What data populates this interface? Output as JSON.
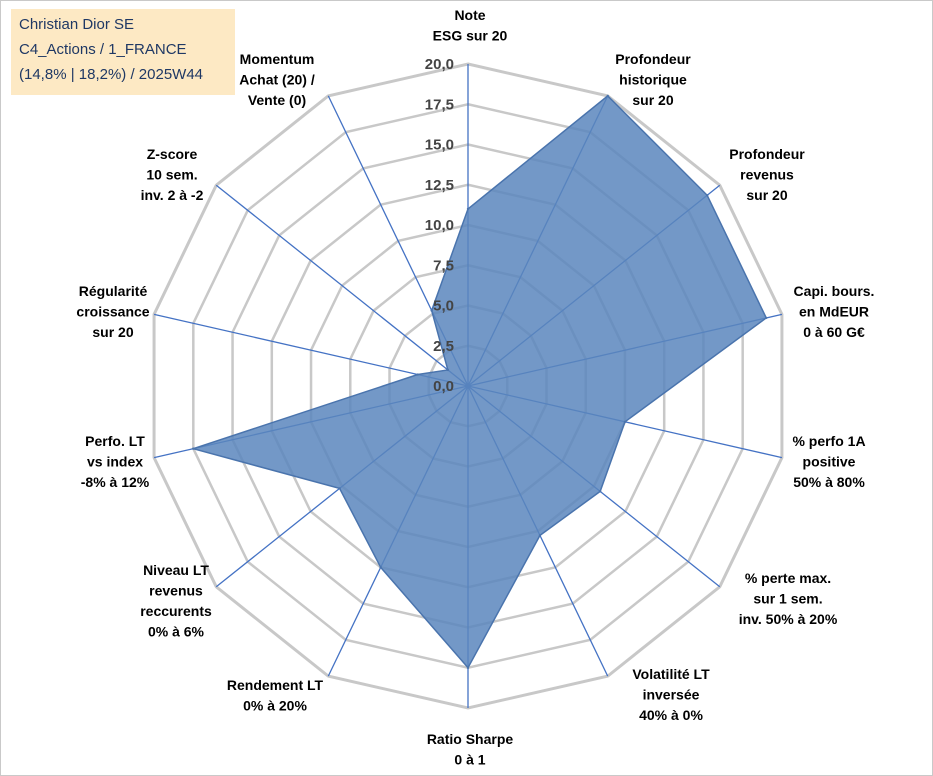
{
  "info": {
    "line1": "Christian Dior SE",
    "line2": "C4_Actions / 1_FRANCE",
    "line3": "(14,8% | 18,2%) / 2025W44"
  },
  "chart_data": {
    "type": "radar",
    "r_range": [
      0,
      20
    ],
    "ticks": [
      "0,0",
      "2,5",
      "5,0",
      "7,5",
      "10,0",
      "12,5",
      "15,0",
      "17,5",
      "20,0"
    ],
    "grid": true,
    "axes": [
      [
        "Note",
        "ESG sur 20"
      ],
      [
        "Profondeur",
        "historique",
        "sur 20"
      ],
      [
        "Profondeur",
        "revenus",
        "sur 20"
      ],
      [
        "Capi. bours.",
        "en MdEUR",
        "0 à 60 G€"
      ],
      [
        "% perfo 1A",
        "positive",
        "50% à 80%"
      ],
      [
        "% perte max.",
        "sur 1 sem.",
        "inv. 50% à 20%"
      ],
      [
        "Volatilité LT",
        "inversée",
        "40% à 0%"
      ],
      [
        "Ratio Sharpe",
        "0 à 1"
      ],
      [
        "Rendement LT",
        "0% à 20%"
      ],
      [
        "Niveau LT",
        "revenus",
        "reccurents",
        "0% à 6%"
      ],
      [
        "Perfo. LT",
        "vs index",
        "-8% à 12%"
      ],
      [
        "Régularité",
        "croissance",
        "sur 20"
      ],
      [
        "Z-score",
        "10 sem.",
        "inv. 2 à -2"
      ],
      [
        "Momentum",
        "Achat (20) /",
        "Vente (0)"
      ]
    ],
    "series": [
      {
        "values": [
          11.0,
          20.0,
          19.0,
          19.0,
          10.0,
          10.5,
          10.3,
          17.5,
          12.5,
          10.2,
          17.5,
          3.2,
          1.6,
          5.2
        ]
      }
    ],
    "colors": {
      "fill": "#5b86bd",
      "stroke": "#4a74ad",
      "grid": "#c8c8c8",
      "spoke": "#4472c4"
    }
  }
}
